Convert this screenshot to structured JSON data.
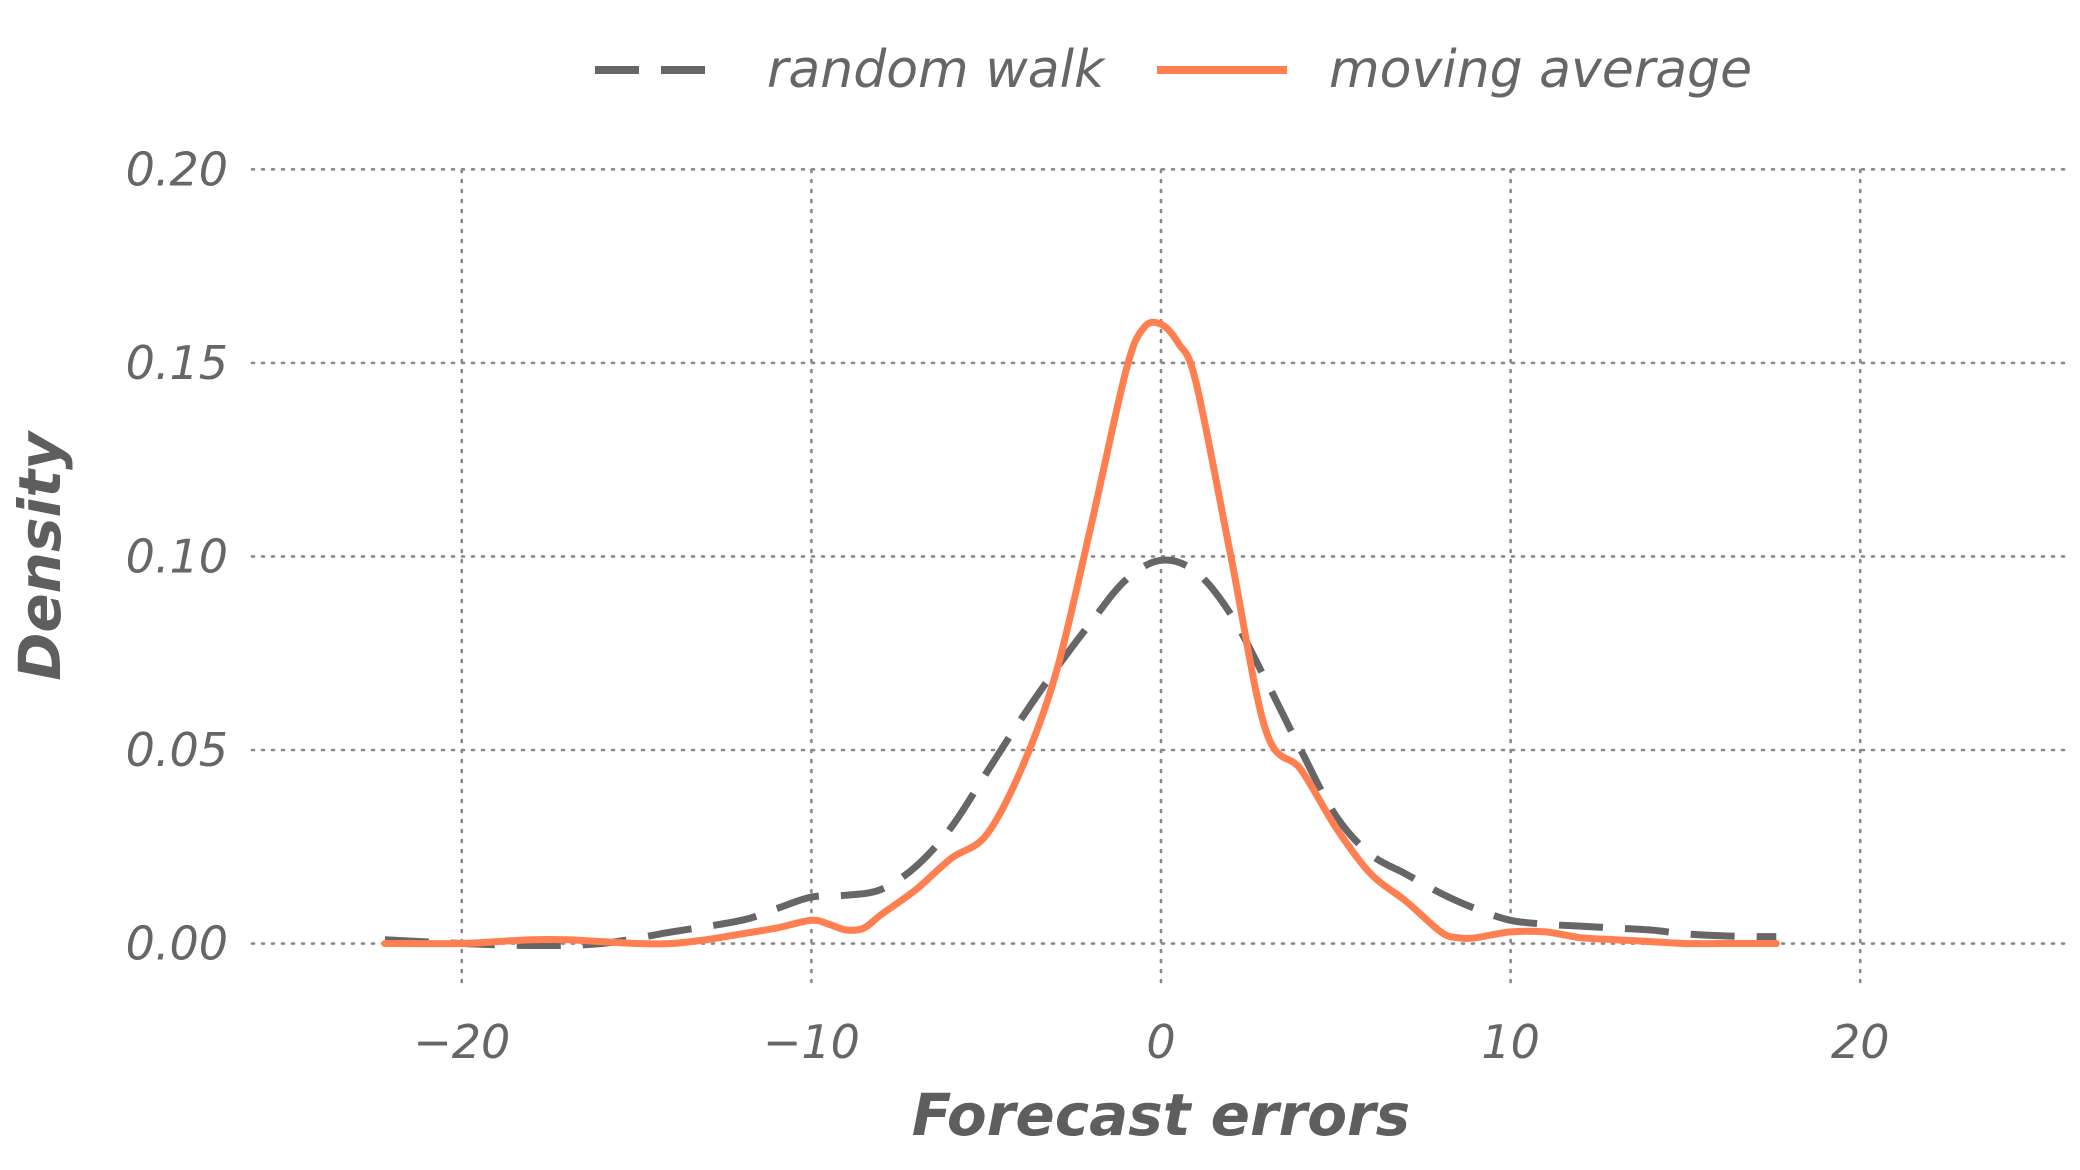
{
  "chart_data": {
    "type": "line",
    "xlabel": "Forecast errors",
    "ylabel": "Density",
    "xlim": [
      -26,
      26
    ],
    "ylim": [
      -0.012,
      0.205
    ],
    "x_ticks": [
      -20,
      -10,
      0,
      10,
      20
    ],
    "x_tick_labels": [
      "−20",
      "−10",
      "0",
      "10",
      "20"
    ],
    "y_ticks": [
      0,
      0.05,
      0.1,
      0.15,
      0.2
    ],
    "y_tick_labels": [
      "0.00",
      "0.05",
      "0.10",
      "0.15",
      "0.20"
    ],
    "grid": true,
    "legend_position": "top",
    "series": [
      {
        "name": "random walk",
        "color": "#666666",
        "dash": "dashed",
        "x": [
          -22.2,
          -20,
          -18,
          -16,
          -14,
          -12,
          -11,
          -10,
          -9,
          -8,
          -7,
          -6,
          -5,
          -4,
          -3,
          -2,
          -1,
          0,
          1,
          2,
          3,
          4,
          5,
          6,
          7,
          8,
          9,
          10,
          11,
          12,
          13,
          14,
          15,
          16,
          17,
          17.6
        ],
        "y": [
          0.001,
          0.0,
          -0.0005,
          0.0,
          0.003,
          0.006,
          0.009,
          0.012,
          0.0125,
          0.014,
          0.02,
          0.03,
          0.044,
          0.058,
          0.071,
          0.083,
          0.094,
          0.099,
          0.096,
          0.085,
          0.068,
          0.05,
          0.033,
          0.023,
          0.018,
          0.013,
          0.009,
          0.006,
          0.005,
          0.0045,
          0.004,
          0.0035,
          0.0025,
          0.002,
          0.0018,
          0.0018
        ]
      },
      {
        "name": "moving average",
        "color": "#ff7f50",
        "dash": "solid",
        "x": [
          -22.2,
          -20,
          -19,
          -18,
          -17,
          -16,
          -15,
          -14,
          -13,
          -12,
          -11,
          -10,
          -9.5,
          -9,
          -8.5,
          -8,
          -7,
          -6,
          -5,
          -4,
          -3,
          -2,
          -1,
          -0.5,
          0,
          0.5,
          1,
          2,
          3,
          4,
          5,
          6,
          7,
          8,
          8.5,
          9,
          10,
          11,
          12,
          13,
          14,
          15,
          16,
          17,
          17.6
        ],
        "y": [
          0.0,
          0.0,
          0.0005,
          0.001,
          0.001,
          0.0005,
          0.0,
          0.0,
          0.001,
          0.0025,
          0.004,
          0.006,
          0.005,
          0.0035,
          0.004,
          0.0075,
          0.014,
          0.022,
          0.028,
          0.045,
          0.07,
          0.108,
          0.148,
          0.159,
          0.16,
          0.155,
          0.145,
          0.1,
          0.055,
          0.045,
          0.03,
          0.018,
          0.011,
          0.003,
          0.0015,
          0.0015,
          0.003,
          0.003,
          0.0015,
          0.001,
          0.0005,
          0.0,
          0.0,
          0.0,
          0.0
        ]
      }
    ]
  }
}
